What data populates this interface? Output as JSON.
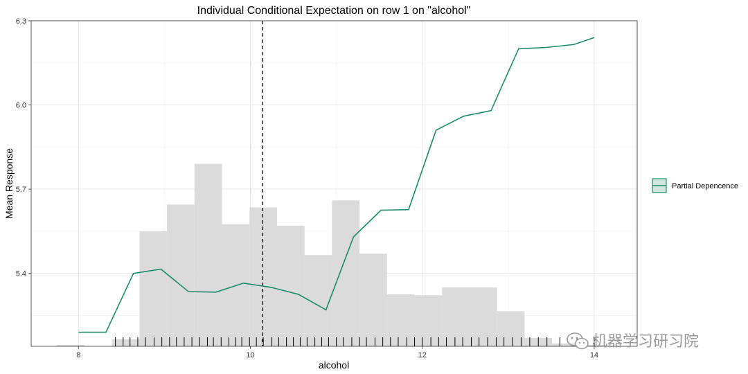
{
  "chart_data": {
    "type": "line",
    "title": "Individual Conditional Expectation on row 1 on \"alcohol\"",
    "xlabel": "alcohol",
    "ylabel": "Mean Response",
    "xlim": [
      7.45,
      14.5
    ],
    "ylim": [
      5.14,
      6.3
    ],
    "x_ticks": [
      8,
      10,
      12,
      14
    ],
    "y_ticks": [
      5.4,
      5.7,
      6.0,
      6.3
    ],
    "x_tick_labels": [
      "8",
      "10",
      "12",
      "14"
    ],
    "y_tick_labels": [
      "5.4",
      "5.7",
      "6.0",
      "6.3"
    ],
    "grid": true,
    "legend_position": "right",
    "colors": {
      "line": "#1b8a6b",
      "legend_fill": "#cfe8df",
      "histogram": "#d9d9d9",
      "reference_line": "#000000",
      "rug": "#000000"
    },
    "reference_line_x": 10.14,
    "series": [
      {
        "name": "Partial Depencence",
        "x": [
          8.0,
          8.32,
          8.64,
          8.96,
          9.28,
          9.6,
          9.92,
          10.24,
          10.56,
          10.88,
          11.2,
          11.52,
          11.84,
          12.16,
          12.48,
          12.8,
          13.12,
          13.44,
          13.76,
          14.0
        ],
        "y": [
          5.19,
          5.19,
          5.4,
          5.415,
          5.335,
          5.333,
          5.365,
          5.35,
          5.325,
          5.27,
          5.53,
          5.625,
          5.627,
          5.91,
          5.96,
          5.98,
          6.2,
          6.205,
          6.215,
          6.24
        ]
      }
    ],
    "histogram": {
      "bin_edges": [
        7.75,
        8.07,
        8.39,
        8.71,
        9.03,
        9.35,
        9.67,
        9.99,
        10.31,
        10.63,
        10.95,
        11.27,
        11.59,
        11.91,
        12.23,
        12.55,
        12.87,
        13.19,
        13.51,
        13.83,
        14.15
      ],
      "heights": [
        5.145,
        5.14,
        5.165,
        5.55,
        5.645,
        5.79,
        5.575,
        5.635,
        5.57,
        5.465,
        5.66,
        5.47,
        5.325,
        5.322,
        5.35,
        5.35,
        5.265,
        5.17,
        5.15,
        5.145
      ]
    },
    "rug_x": [
      8.43,
      8.52,
      8.6,
      8.69,
      8.78,
      8.88,
      8.97,
      9.06,
      9.14,
      9.23,
      9.32,
      9.41,
      9.5,
      9.57,
      9.66,
      9.75,
      9.83,
      9.9,
      9.99,
      10.07,
      10.15,
      10.25,
      10.33,
      10.42,
      10.5,
      10.58,
      10.66,
      10.75,
      10.83,
      10.91,
      11.0,
      11.08,
      11.18,
      11.27,
      11.35,
      11.45,
      11.54,
      11.63,
      11.72,
      11.82,
      11.91,
      12.0,
      12.1,
      12.19,
      12.28,
      12.38,
      12.47,
      12.57,
      12.66,
      12.76,
      12.86,
      12.95,
      13.05,
      13.15,
      13.25,
      13.35,
      13.45,
      13.6,
      13.8,
      14.0
    ]
  },
  "legend": {
    "label": "Partial Depencence"
  },
  "watermark": {
    "text": "机器学习研习院"
  }
}
